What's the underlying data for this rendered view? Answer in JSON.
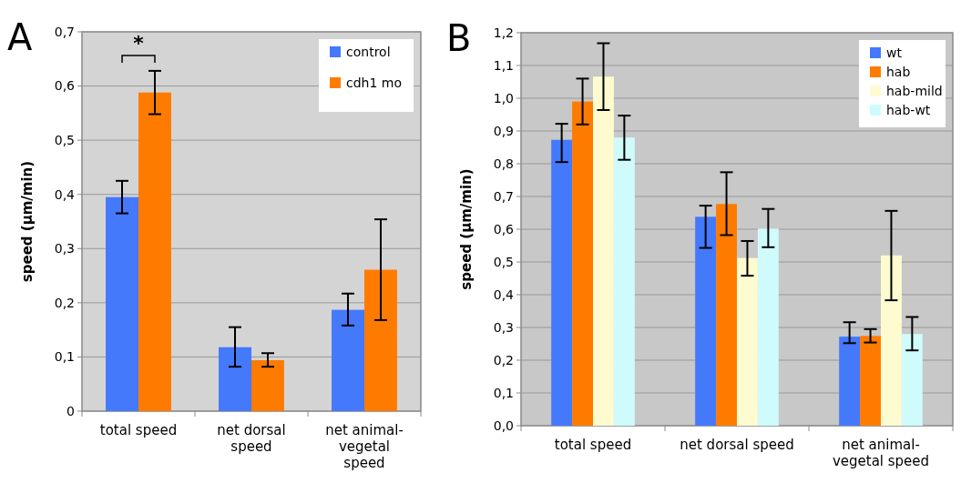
{
  "chart_data": [
    {
      "type": "bar",
      "title": "A",
      "ylabel": "speed (µm/min)",
      "categories": [
        "total speed",
        "net dorsal speed",
        "net animal-vegetal speed"
      ],
      "series": [
        {
          "name": "control",
          "color": "#4479fc",
          "values": [
            0.395,
            0.118,
            0.187
          ],
          "errors": [
            [
              0.365,
              0.425
            ],
            [
              0.082,
              0.155
            ],
            [
              0.158,
              0.217
            ]
          ]
        },
        {
          "name": "cdh1 mo",
          "color": "#ff7b00",
          "values": [
            0.588,
            0.094,
            0.261
          ],
          "errors": [
            [
              0.548,
              0.628
            ],
            [
              0.082,
              0.107
            ],
            [
              0.168,
              0.354
            ]
          ]
        }
      ],
      "ylim": [
        0,
        0.7
      ],
      "yticks": [
        0,
        {
          "value": 0.1,
          "label": "0,1"
        },
        {
          "value": 0.2,
          "label": "0,2"
        },
        {
          "value": 0.3,
          "label": "0,3"
        },
        {
          "value": 0.4,
          "label": "0,4"
        },
        {
          "value": 0.5,
          "label": "0,5"
        },
        {
          "value": 0.6,
          "label": "0,6"
        },
        {
          "value": 0.7,
          "label": "0,7"
        }
      ],
      "grid": "y",
      "legend": "top right",
      "annotations": [
        "*"
      ]
    },
    {
      "type": "bar",
      "title": "B",
      "ylabel": "speed (µm/min)",
      "categories": [
        "total speed",
        "net dorsal speed",
        "net animal-vegetal speed"
      ],
      "series": [
        {
          "name": "wt",
          "color": "#4479fc",
          "values": [
            0.873,
            0.638,
            0.272
          ],
          "errors": [
            [
              0.805,
              0.922
            ],
            [
              0.543,
              0.672
            ],
            [
              0.252,
              0.316
            ]
          ]
        },
        {
          "name": "hab",
          "color": "#ff7b00",
          "values": [
            0.99,
            0.677,
            0.274
          ],
          "errors": [
            [
              0.92,
              1.06
            ],
            [
              0.582,
              0.774
            ],
            [
              0.254,
              0.295
            ]
          ]
        },
        {
          "name": "hab-mild",
          "color": "#fffbd0",
          "values": [
            1.066,
            0.512,
            0.52
          ],
          "errors": [
            [
              0.964,
              1.168
            ],
            [
              0.458,
              0.564
            ],
            [
              0.383,
              0.656
            ]
          ]
        },
        {
          "name": "hab-wt",
          "color": "#d0fbfd",
          "values": [
            0.88,
            0.602,
            0.28
          ],
          "errors": [
            [
              0.812,
              0.947
            ],
            [
              0.545,
              0.662
            ],
            [
              0.23,
              0.332
            ]
          ]
        }
      ],
      "ylim": [
        0,
        1.2
      ],
      "yticks": [
        {
          "value": 0,
          "label": "0,0"
        },
        {
          "value": 0.1,
          "label": "0,1"
        },
        {
          "value": 0.2,
          "label": "0,2"
        },
        {
          "value": 0.3,
          "label": "0,3"
        },
        {
          "value": 0.4,
          "label": "0,4"
        },
        {
          "value": 0.5,
          "label": "0,5"
        },
        {
          "value": 0.6,
          "label": "0,6"
        },
        {
          "value": 0.7,
          "label": "0,7"
        },
        {
          "value": 0.8,
          "label": "0,8"
        },
        {
          "value": 0.9,
          "label": "0,9"
        },
        {
          "value": 1.0,
          "label": "1,0"
        },
        {
          "value": 1.1,
          "label": "1,1"
        },
        {
          "value": 1.2,
          "label": "1,2"
        }
      ],
      "grid": "y",
      "legend": "top right"
    }
  ]
}
